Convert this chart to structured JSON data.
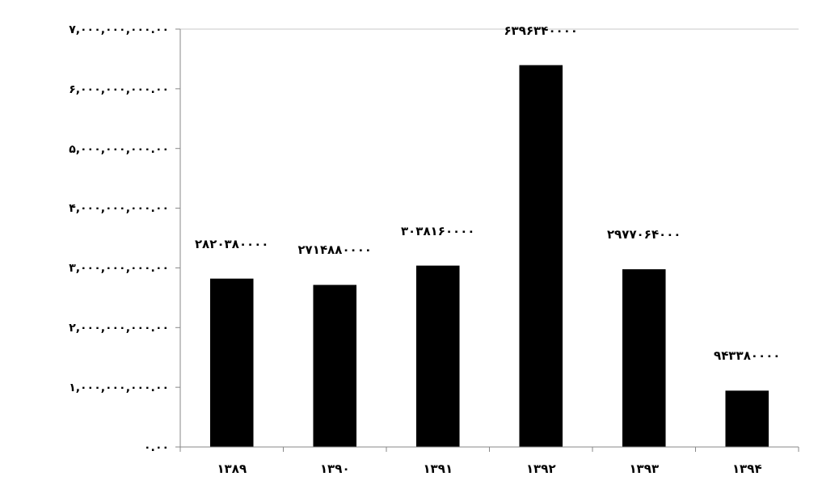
{
  "chart_data": {
    "type": "bar",
    "categories": [
      "۱۳۸۹",
      "۱۳۹۰",
      "۱۳۹۱",
      "۱۳۹۲",
      "۱۳۹۳",
      "۱۳۹۴"
    ],
    "values": [
      2820380000,
      2714880000,
      3038160000,
      6396340000,
      2977064000,
      943380000
    ],
    "value_labels": [
      "۲۸۲۰۳۸۰۰۰۰",
      "۲۷۱۴۸۸۰۰۰۰",
      "۳۰۳۸۱۶۰۰۰۰",
      "۶۳۹۶۳۴۰۰۰۰",
      "۲۹۷۷۰۶۴۰۰۰",
      "۹۴۳۳۸۰۰۰۰"
    ],
    "color": "#000000",
    "ylim": [
      0,
      7000000000
    ],
    "yticks": [
      {
        "value": 0,
        "label": "۰.۰۰"
      },
      {
        "value": 1000000000,
        "label": "۱,۰۰۰,۰۰۰,۰۰۰.۰۰"
      },
      {
        "value": 2000000000,
        "label": "۲,۰۰۰,۰۰۰,۰۰۰.۰۰"
      },
      {
        "value": 3000000000,
        "label": "۳,۰۰۰,۰۰۰,۰۰۰.۰۰"
      },
      {
        "value": 4000000000,
        "label": "۴,۰۰۰,۰۰۰,۰۰۰.۰۰"
      },
      {
        "value": 5000000000,
        "label": "۵,۰۰۰,۰۰۰,۰۰۰.۰۰"
      },
      {
        "value": 6000000000,
        "label": "۶,۰۰۰,۰۰۰,۰۰۰.۰۰"
      },
      {
        "value": 7000000000,
        "label": "۷,۰۰۰,۰۰۰,۰۰۰.۰۰"
      }
    ],
    "grid": false
  }
}
